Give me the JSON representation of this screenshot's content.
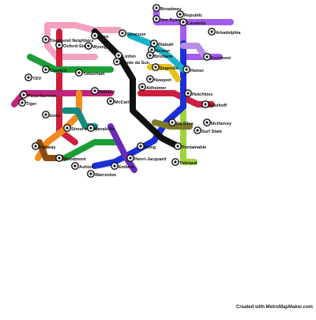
{
  "credit": "Created with MetroMapMaker.com",
  "colors": {
    "violet": "#a35cf0",
    "pink": "#f3a0c0",
    "red": "#cc1f3d",
    "magenta": "#c0257a",
    "green": "#1a9e35",
    "lime": "#9fd23c",
    "blue": "#1a2fd6",
    "cyan": "#19b3c9",
    "orange": "#f28a1e",
    "black": "#111111",
    "brown": "#8a4b14",
    "purple": "#6a2ab8",
    "lavender": "#b88ce8",
    "olive": "#7c7a2a",
    "yellow": "#e6c21a",
    "teal": "#12897d"
  },
  "lines": [
    {
      "color": "violet"
    },
    {
      "color": "pink"
    },
    {
      "color": "red"
    },
    {
      "color": "magenta"
    },
    {
      "color": "green"
    },
    {
      "color": "lime"
    },
    {
      "color": "blue"
    },
    {
      "color": "cyan"
    },
    {
      "color": "orange"
    },
    {
      "color": "black"
    },
    {
      "color": "brown"
    },
    {
      "color": "purple"
    },
    {
      "color": "lavender"
    },
    {
      "color": "olive"
    },
    {
      "color": "yellow"
    },
    {
      "color": "teal"
    }
  ],
  "stations": [
    {
      "label": "Broadway"
    },
    {
      "label": "Republic"
    },
    {
      "label": "Von Ryan"
    },
    {
      "label": "Lavalette"
    },
    {
      "label": "Aero"
    },
    {
      "label": "Syracuse"
    },
    {
      "label": "Arkadelphia"
    },
    {
      "label": "Townsend Neighbors"
    },
    {
      "label": "Oxford-Stead"
    },
    {
      "label": "Wyong"
    },
    {
      "label": "Linfon"
    },
    {
      "label": "Monte da Sun"
    },
    {
      "label": "Rialeah"
    },
    {
      "label": "Sextan"
    },
    {
      "label": "Brisbane"
    },
    {
      "label": "Segeville"
    },
    {
      "label": "Eastmont"
    },
    {
      "label": "Heiner"
    },
    {
      "label": "Tottenham"
    },
    {
      "label": "YDV"
    },
    {
      "label": "Comfort"
    },
    {
      "label": "Poca Narrows"
    },
    {
      "label": "Tiger"
    },
    {
      "label": "Halsted"
    },
    {
      "label": "Altheimer"
    },
    {
      "label": "Newport"
    },
    {
      "label": "Hutchkiss"
    },
    {
      "label": "Easthoff"
    },
    {
      "label": "McCarthy"
    },
    {
      "label": "Da Silva"
    },
    {
      "label": "McHarvey"
    },
    {
      "label": "Surf State"
    },
    {
      "label": "Ionia"
    },
    {
      "label": "Street of Lion"
    },
    {
      "label": "Coralville"
    },
    {
      "label": "Fairway"
    },
    {
      "label": "Woodmont"
    },
    {
      "label": "Kong"
    },
    {
      "label": "Pontainable"
    },
    {
      "label": "Henri-Jacquard"
    },
    {
      "label": "Ashton"
    },
    {
      "label": "Emblex"
    },
    {
      "label": "Warrenton"
    },
    {
      "label": "Tideland"
    }
  ]
}
